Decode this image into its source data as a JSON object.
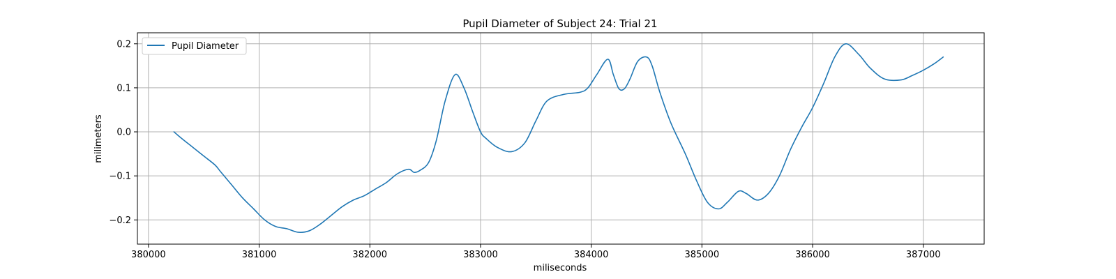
{
  "chart_data": {
    "type": "line",
    "title": "Pupil Diameter of Subject 24: Trial 21",
    "xlabel": "miliseconds",
    "ylabel": "milimeters",
    "xlim": [
      379900,
      387550
    ],
    "ylim": [
      -0.255,
      0.225
    ],
    "xticks": [
      380000,
      381000,
      382000,
      383000,
      384000,
      385000,
      386000,
      387000
    ],
    "yticks": [
      -0.2,
      -0.1,
      0.0,
      0.1,
      0.2
    ],
    "ytick_labels": [
      "−0.2",
      "−0.1",
      "0.0",
      "0.1",
      "0.2"
    ],
    "grid": true,
    "legend_position": "top-left",
    "series": [
      {
        "name": "Pupil Diameter",
        "color": "#1f77b4",
        "x": [
          380230,
          380300,
          380400,
          380500,
          380600,
          380650,
          380750,
          380850,
          380950,
          381050,
          381150,
          381250,
          381350,
          381450,
          381550,
          381650,
          381750,
          381850,
          381950,
          382050,
          382150,
          382250,
          382350,
          382400,
          382450,
          382530,
          382600,
          382680,
          382770,
          382850,
          382930,
          383000,
          383050,
          383150,
          383280,
          383400,
          383500,
          383600,
          383750,
          383900,
          383970,
          384050,
          384150,
          384200,
          384250,
          384300,
          384350,
          384420,
          384500,
          384550,
          384620,
          384720,
          384850,
          384950,
          385050,
          385150,
          385230,
          385330,
          385400,
          385500,
          385600,
          385700,
          385800,
          385900,
          386000,
          386100,
          386200,
          386300,
          386420,
          386520,
          386650,
          386800,
          386900,
          387000,
          387100,
          387180
        ],
        "y": [
          0.0,
          -0.015,
          -0.035,
          -0.055,
          -0.075,
          -0.09,
          -0.12,
          -0.15,
          -0.175,
          -0.2,
          -0.215,
          -0.22,
          -0.228,
          -0.225,
          -0.21,
          -0.19,
          -0.17,
          -0.155,
          -0.145,
          -0.13,
          -0.115,
          -0.095,
          -0.085,
          -0.092,
          -0.088,
          -0.07,
          -0.02,
          0.07,
          0.13,
          0.1,
          0.045,
          0.0,
          -0.015,
          -0.035,
          -0.045,
          -0.025,
          0.025,
          0.07,
          0.085,
          0.09,
          0.1,
          0.13,
          0.165,
          0.13,
          0.098,
          0.098,
          0.12,
          0.16,
          0.17,
          0.15,
          0.09,
          0.02,
          -0.05,
          -0.11,
          -0.16,
          -0.175,
          -0.16,
          -0.135,
          -0.14,
          -0.155,
          -0.14,
          -0.1,
          -0.04,
          0.01,
          0.055,
          0.11,
          0.17,
          0.2,
          0.175,
          0.145,
          0.12,
          0.118,
          0.128,
          0.14,
          0.155,
          0.17
        ]
      }
    ]
  }
}
